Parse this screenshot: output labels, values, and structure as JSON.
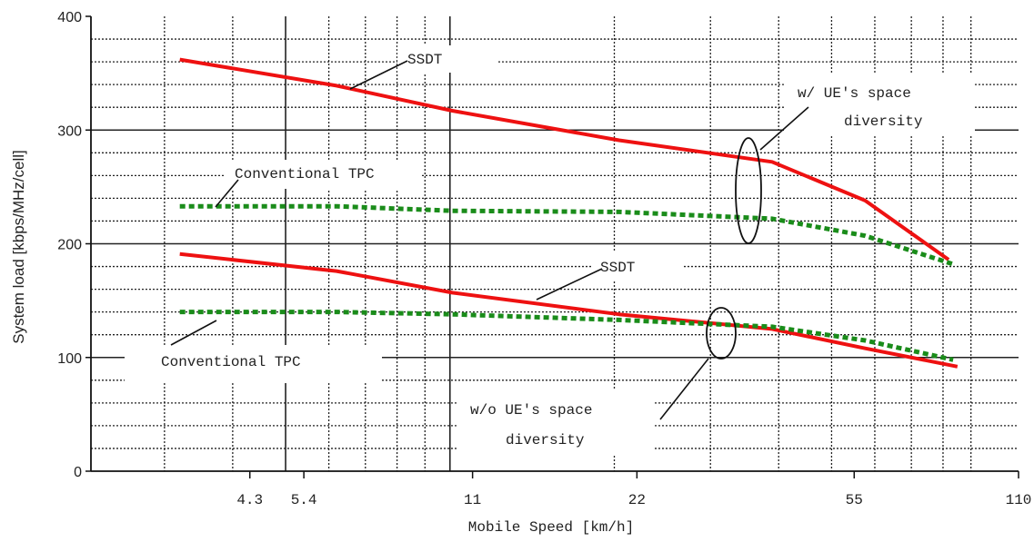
{
  "chart_data": {
    "type": "line",
    "xlabel": "Mobile Speed [km/h]",
    "ylabel": "System load [kbps/MHz/cell]",
    "x_scale": "log",
    "xlim": [
      2.2,
      110
    ],
    "ylim": [
      0,
      400
    ],
    "x_tick_labels": [
      "4.3",
      "5.4",
      "11",
      "22",
      "55",
      "110"
    ],
    "y_tick_labels": [
      "0",
      "100",
      "200",
      "300",
      "400"
    ],
    "grid": true,
    "series": [
      {
        "group": "w/ UE's space diversity",
        "label": "SSDT",
        "style": "solid",
        "color": "#ee1111",
        "x": [
          3.2,
          6.2,
          10.1,
          20.4,
          38.9,
          57.6,
          81.9
        ],
        "y": [
          362,
          339,
          317,
          291,
          272,
          238,
          186
        ]
      },
      {
        "group": "w/ UE's space diversity",
        "label": "Conventional TPC",
        "style": "dotted",
        "color": "#1a8c1a",
        "x": [
          3.2,
          6.2,
          10.1,
          20.4,
          38.9,
          57.6,
          83.5
        ],
        "y": [
          233,
          233,
          229,
          228,
          222,
          207,
          182
        ]
      },
      {
        "group": "w/o UE's space diversity",
        "label": "SSDT",
        "style": "solid",
        "color": "#ee1111",
        "x": [
          3.2,
          6.2,
          10.1,
          20.4,
          38.9,
          57.6,
          85.0
        ],
        "y": [
          191,
          176,
          157,
          138,
          125,
          108,
          92
        ]
      },
      {
        "group": "w/o UE's space diversity",
        "label": "Conventional TPC",
        "style": "dotted",
        "color": "#1a8c1a",
        "x": [
          3.2,
          6.2,
          10.1,
          20.4,
          38.9,
          57.6,
          83.5
        ],
        "y": [
          140,
          140,
          138,
          133,
          127,
          115,
          98
        ]
      }
    ],
    "annotations": {
      "top_ssdt": "SSDT",
      "top_tpc": "Conventional TPC",
      "bottom_ssdt": "SSDT",
      "bottom_tpc": "Conventional TPC",
      "with_div_line1": "w/ UE's space",
      "with_div_line2": "diversity",
      "without_div_line1": "w/o UE's space",
      "without_div_line2": "diversity"
    }
  }
}
